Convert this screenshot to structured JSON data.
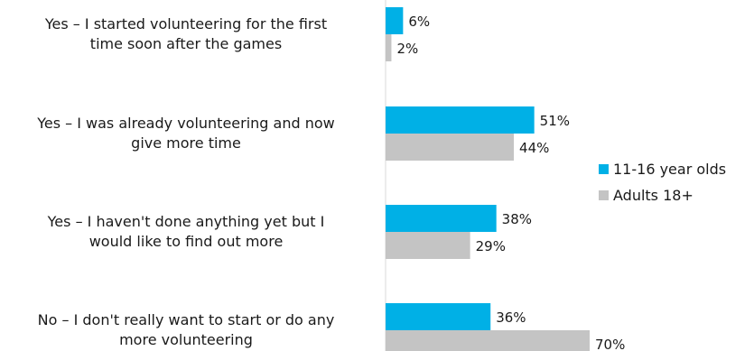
{
  "chart_data": {
    "type": "bar",
    "orientation": "horizontal",
    "categories": [
      [
        "Yes – I started volunteering for the first",
        "time soon after the games"
      ],
      [
        "Yes – I was already volunteering and now",
        "give more time"
      ],
      [
        "Yes – I haven't done anything yet but I",
        "would like to find out more"
      ],
      [
        "No – I don't really want to start or do any",
        "more volunteering"
      ]
    ],
    "series": [
      {
        "name": "11-16  year olds",
        "color": "#00b0e6",
        "values": [
          6,
          51,
          38,
          36
        ],
        "labels": [
          "6%",
          "51%",
          "38%",
          "36%"
        ]
      },
      {
        "name": "Adults 18+",
        "color": "#c4c4c4",
        "values": [
          2,
          44,
          29,
          70
        ],
        "labels": [
          "2%",
          "44%",
          "29%",
          "70%"
        ]
      }
    ],
    "value_unit": "%",
    "xlim": [
      0,
      100
    ],
    "grid": false,
    "legend_position": "right"
  }
}
